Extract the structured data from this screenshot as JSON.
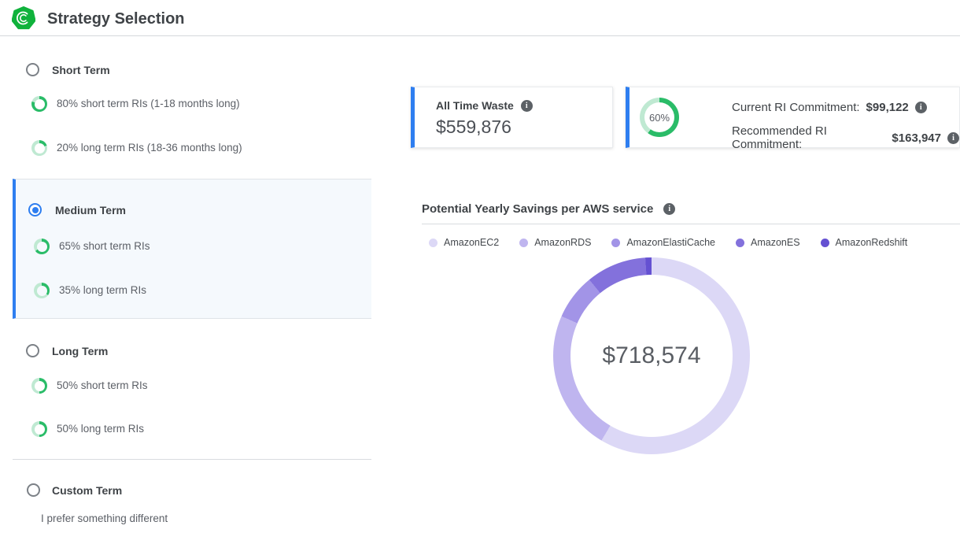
{
  "header": {
    "title": "Strategy Selection"
  },
  "sidebar": {
    "strategies": [
      {
        "label": "Short Term",
        "selected": false,
        "subs": [
          {
            "percent": 80,
            "label": "80% short term RIs (1-18 months long)"
          },
          {
            "percent": 20,
            "label": "20% long term RIs (18-36 months long)"
          }
        ]
      },
      {
        "label": "Medium Term",
        "selected": true,
        "subs": [
          {
            "percent": 65,
            "label": "65% short term RIs"
          },
          {
            "percent": 35,
            "label": "35% long term RIs"
          }
        ]
      },
      {
        "label": "Long Term",
        "selected": false,
        "subs": [
          {
            "percent": 50,
            "label": "50% short term RIs"
          },
          {
            "percent": 50,
            "label": "50% long term RIs"
          }
        ]
      },
      {
        "label": "Custom Term",
        "selected": false,
        "description": "I prefer something different",
        "subs": []
      }
    ]
  },
  "cards": {
    "waste": {
      "label": "All Time Waste",
      "value": "$559,876"
    },
    "commitment": {
      "ring_percent": 60,
      "ring_label": "60%",
      "current_label": "Current RI Commitment:",
      "current_value": "$99,122",
      "recommended_label": "Recommended RI Commitment:",
      "recommended_value": "$163,947"
    }
  },
  "chart_data": {
    "type": "pie",
    "donut": true,
    "title": "Potential Yearly Savings per AWS service",
    "center_label": "$718,574",
    "total_savings": 718574,
    "legend_position": "top",
    "series": [
      {
        "name": "AmazonEC2",
        "percent": 58.5,
        "color": "#dcd8f6"
      },
      {
        "name": "AmazonRDS",
        "percent": 23.1,
        "color": "#bfb5ef"
      },
      {
        "name": "AmazonElastiCache",
        "percent": 7.5,
        "color": "#a294e7"
      },
      {
        "name": "AmazonES",
        "percent": 9.9,
        "color": "#8371dc"
      },
      {
        "name": "AmazonRedshift",
        "percent": 1.0,
        "color": "#6551d2"
      }
    ]
  },
  "colors": {
    "accent_blue": "#2e7ef0",
    "logo_green": "#10b23c",
    "ring_fill_green": "#2abc68",
    "ring_track_green": "#bfe9d2",
    "selected_bg": "#f5f9fd"
  }
}
